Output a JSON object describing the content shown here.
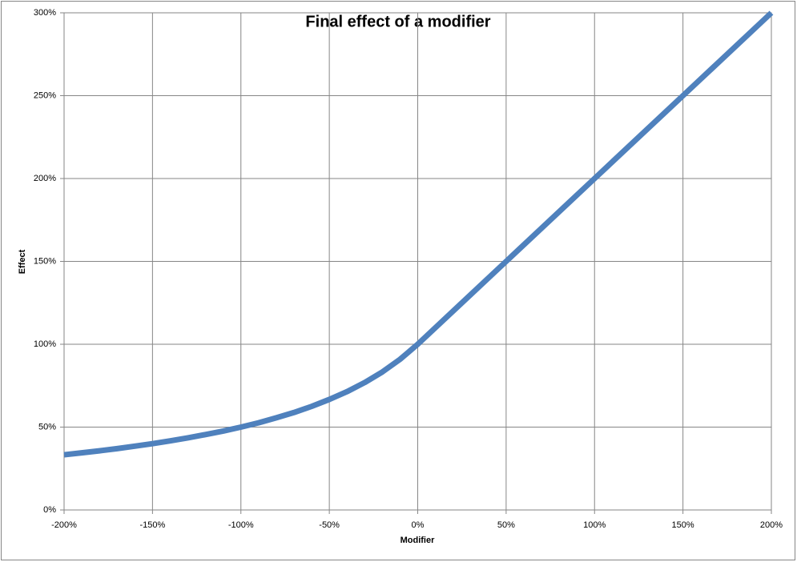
{
  "chart_data": {
    "type": "line",
    "title": "Final effect of a modifier",
    "x_label": "Modifier",
    "y_label": "Effect",
    "x": [
      -200,
      -190,
      -180,
      -170,
      -160,
      -150,
      -140,
      -130,
      -120,
      -110,
      -100,
      -90,
      -80,
      -70,
      -60,
      -50,
      -40,
      -30,
      -20,
      -10,
      0,
      50,
      100,
      150,
      200
    ],
    "values": [
      33.3,
      34.5,
      35.7,
      37.0,
      38.5,
      40.0,
      41.7,
      43.5,
      45.5,
      47.6,
      50.0,
      52.6,
      55.6,
      58.8,
      62.5,
      66.7,
      71.4,
      76.9,
      83.3,
      90.9,
      100,
      150,
      200,
      250,
      300
    ],
    "color": "#4f81bd",
    "xlim": [
      -200,
      200
    ],
    "xticks": [
      {
        "value": -200,
        "label": "-200%"
      },
      {
        "value": -150,
        "label": "-150%"
      },
      {
        "value": -100,
        "label": "-100%"
      },
      {
        "value": -50,
        "label": "-50%"
      },
      {
        "value": 0,
        "label": "0%"
      },
      {
        "value": 50,
        "label": "50%"
      },
      {
        "value": 100,
        "label": "100%"
      },
      {
        "value": 150,
        "label": "150%"
      },
      {
        "value": 200,
        "label": "200%"
      }
    ],
    "ylim": [
      0,
      300
    ],
    "yticks": [
      {
        "value": 0,
        "label": "0%"
      },
      {
        "value": 50,
        "label": "50%"
      },
      {
        "value": 100,
        "label": "100%"
      },
      {
        "value": 150,
        "label": "150%"
      },
      {
        "value": 200,
        "label": "200%"
      },
      {
        "value": 250,
        "label": "250%"
      },
      {
        "value": 300,
        "label": "300%"
      }
    ],
    "grid": true
  }
}
